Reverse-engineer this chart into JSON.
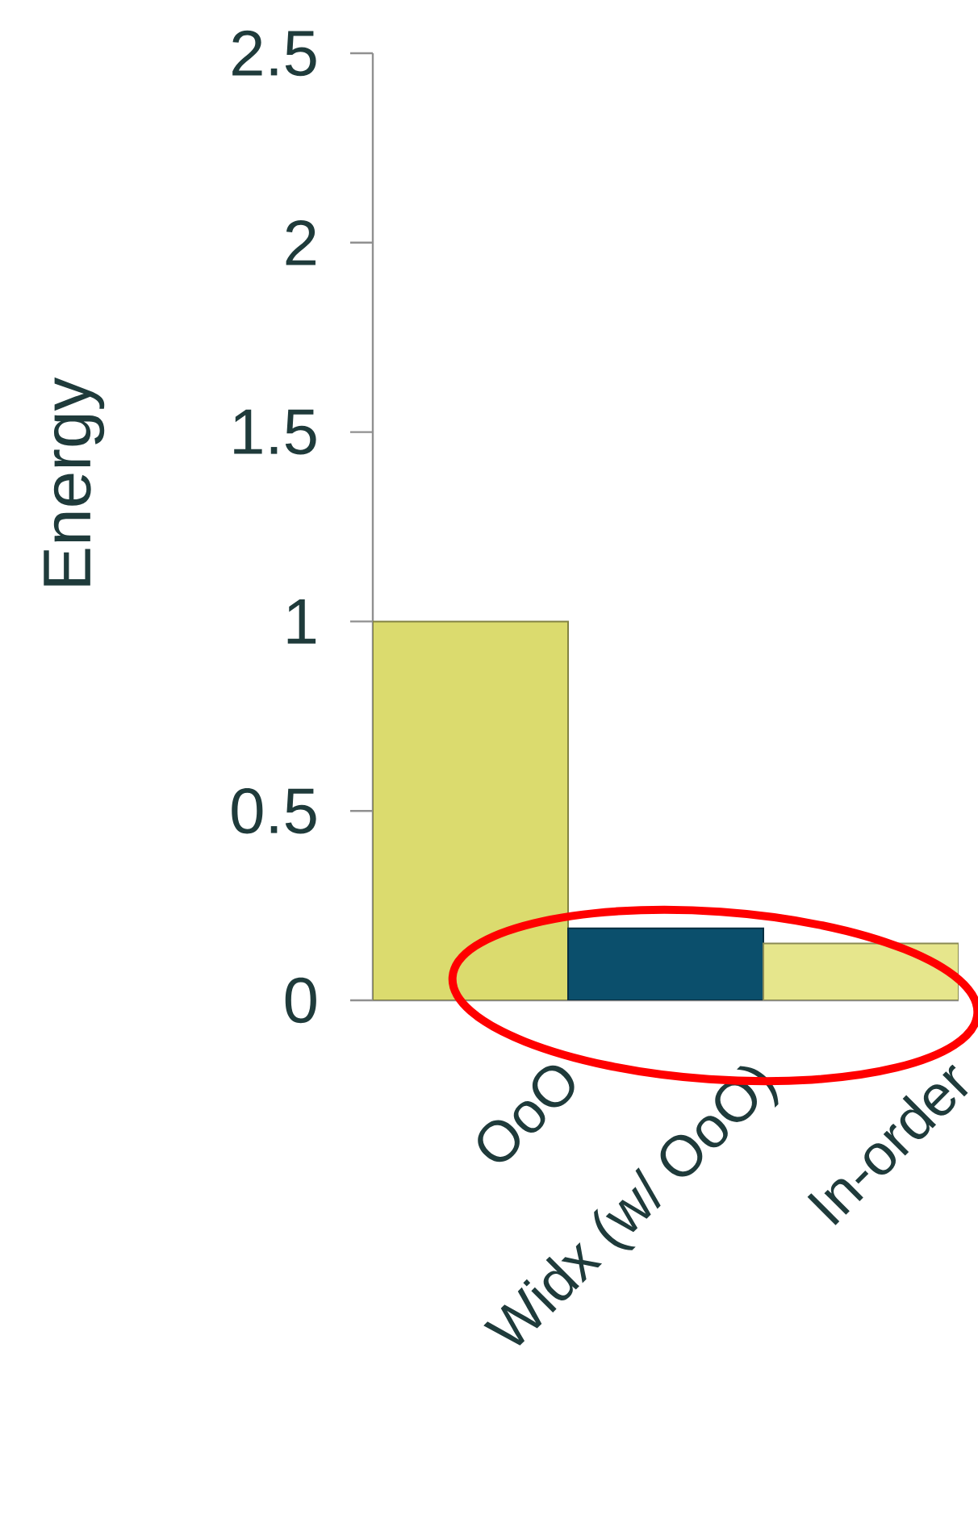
{
  "chart_data": {
    "type": "bar",
    "ylabel": "Energy",
    "categories": [
      "OoO",
      "Widx (w/ OoO)",
      "In-order"
    ],
    "values": [
      1.0,
      0.19,
      0.15
    ],
    "colors": [
      "#dbdb6e",
      "#0b4f6c",
      "#e6e68c"
    ],
    "ylim": [
      0,
      2.5
    ],
    "yticks": [
      0,
      0.5,
      1,
      1.5,
      2,
      2.5
    ],
    "grid": false
  }
}
